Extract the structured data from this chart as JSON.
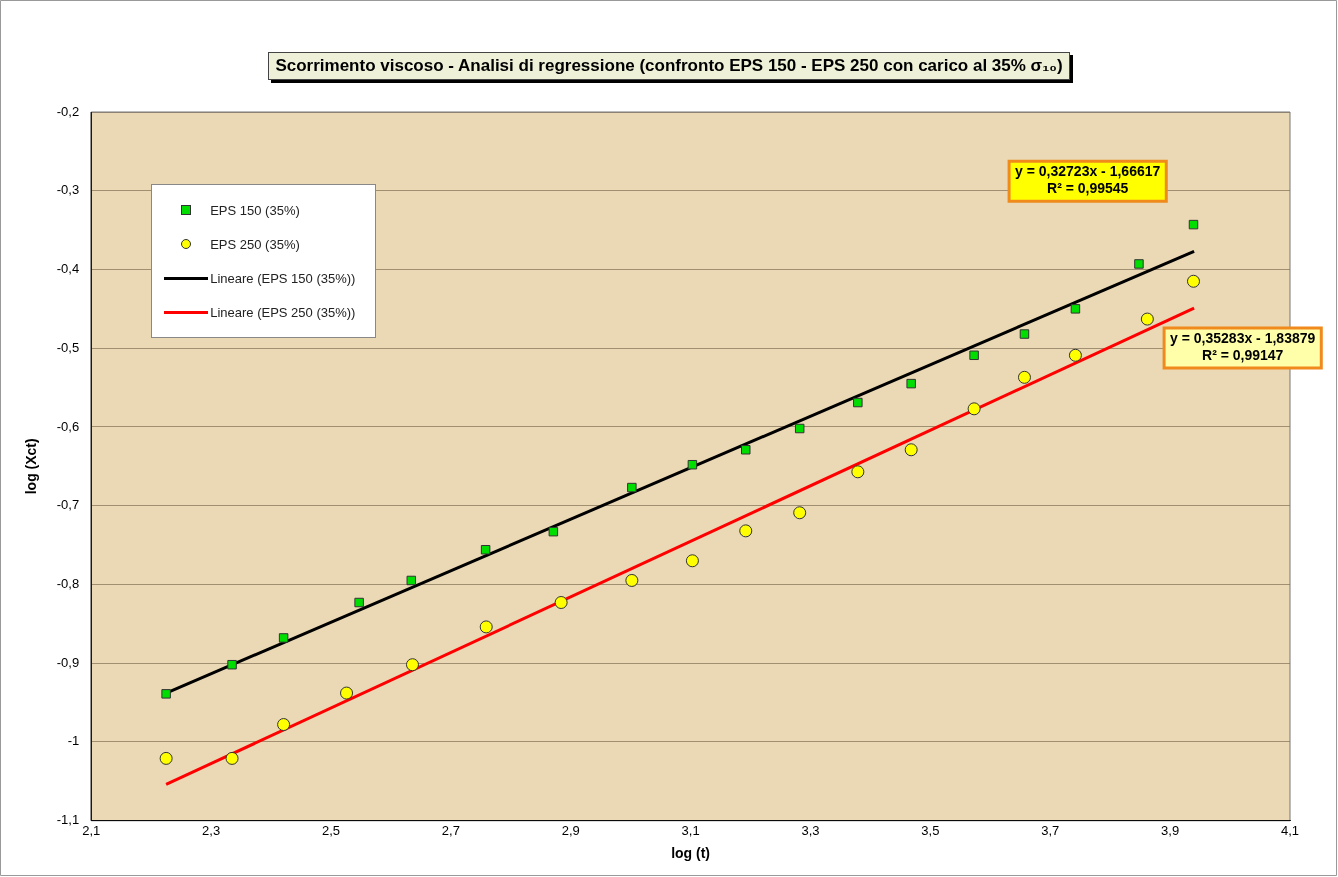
{
  "chart_data": {
    "type": "scatter",
    "title": "Scorrimento viscoso - Analisi di regressione (confronto EPS 150 - EPS 250 con carico al 35% σ₁₀)",
    "xlabel": "log (t)",
    "ylabel": "log (Xct)",
    "xlim": [
      2.1,
      4.1
    ],
    "xticks": [
      {
        "value": 2.1,
        "label": "2,1"
      },
      {
        "value": 2.3,
        "label": "2,3"
      },
      {
        "value": 2.5,
        "label": "2,5"
      },
      {
        "value": 2.7,
        "label": "2,7"
      },
      {
        "value": 2.9,
        "label": "2,9"
      },
      {
        "value": 3.1,
        "label": "3,1"
      },
      {
        "value": 3.3,
        "label": "3,3"
      },
      {
        "value": 3.5,
        "label": "3,5"
      },
      {
        "value": 3.7,
        "label": "3,7"
      },
      {
        "value": 3.9,
        "label": "3,9"
      },
      {
        "value": 4.1,
        "label": "4,1"
      }
    ],
    "ylim": [
      -1.1,
      -0.2
    ],
    "yticks": [
      {
        "value": -1.1,
        "label": "-1,1"
      },
      -1,
      {
        "value": -0.9,
        "label": "-0,9"
      },
      {
        "value": -0.8,
        "label": "-0,8"
      },
      {
        "value": -0.7,
        "label": "-0,7"
      },
      {
        "value": -0.6,
        "label": "-0,6"
      },
      {
        "value": -0.5,
        "label": "-0,5"
      },
      {
        "value": -0.4,
        "label": "-0,4"
      },
      {
        "value": -0.3,
        "label": "-0,3"
      },
      {
        "value": -0.2,
        "label": "-0,2"
      }
    ],
    "grid": "y",
    "legend": "top left",
    "series": [
      {
        "name": "EPS 150 (35%)",
        "type": "scatter",
        "marker": "square",
        "color": "#00dd00",
        "x": [
          2.225,
          2.335,
          2.421,
          2.547,
          2.634,
          2.758,
          2.871,
          3.002,
          3.103,
          3.192,
          3.282,
          3.379,
          3.468,
          3.573,
          3.657,
          3.742,
          3.848,
          3.939
        ],
        "values": [
          -0.939,
          -0.902,
          -0.868,
          -0.823,
          -0.795,
          -0.756,
          -0.733,
          -0.677,
          -0.648,
          -0.629,
          -0.602,
          -0.569,
          -0.545,
          -0.509,
          -0.482,
          -0.45,
          -0.393,
          -0.343
        ]
      },
      {
        "name": "EPS 250 (35%)",
        "type": "scatter",
        "marker": "circle",
        "color": "#ffff00",
        "x": [
          2.225,
          2.335,
          2.421,
          2.526,
          2.636,
          2.759,
          2.884,
          3.002,
          3.103,
          3.192,
          3.282,
          3.379,
          3.468,
          3.573,
          3.657,
          3.742,
          3.862,
          3.939
        ],
        "values": [
          -1.021,
          -1.021,
          -0.978,
          -0.938,
          -0.902,
          -0.854,
          -0.823,
          -0.795,
          -0.77,
          -0.732,
          -0.709,
          -0.657,
          -0.629,
          -0.577,
          -0.537,
          -0.509,
          -0.463,
          -0.415
        ]
      },
      {
        "name": "Lineare (EPS 150 (35%))",
        "type": "line",
        "color": "#000000",
        "x": [
          2.225,
          3.94
        ],
        "values": [
          -0.938,
          -0.377
        ]
      },
      {
        "name": "Lineare (EPS 250 (35%))",
        "type": "line",
        "color": "#ff0000",
        "x": [
          2.225,
          3.94
        ],
        "values": [
          -1.054,
          -0.449
        ]
      }
    ],
    "annotations": [
      "y = 0,32723x - 1,66617\nR² = 0,99545",
      "y = 0,35283x - 1,83879\nR² = 0,99147"
    ]
  }
}
